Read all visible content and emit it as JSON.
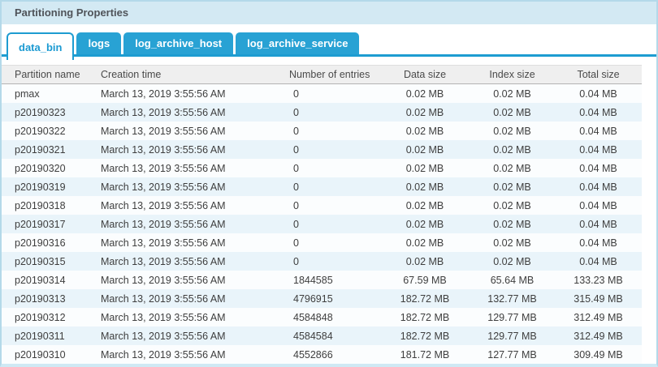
{
  "panel": {
    "title": "Partitioning Properties"
  },
  "tabs": [
    {
      "label": "data_bin",
      "active": true
    },
    {
      "label": "logs",
      "active": false
    },
    {
      "label": "log_archive_host",
      "active": false
    },
    {
      "label": "log_archive_service",
      "active": false
    }
  ],
  "table": {
    "columns": [
      "Partition name",
      "Creation time",
      "Number of entries",
      "Data size",
      "Index size",
      "Total size"
    ],
    "rows": [
      [
        "pmax",
        "March 13, 2019 3:55:56 AM",
        "0",
        "0.02 MB",
        "0.02 MB",
        "0.04 MB"
      ],
      [
        "p20190323",
        "March 13, 2019 3:55:56 AM",
        "0",
        "0.02 MB",
        "0.02 MB",
        "0.04 MB"
      ],
      [
        "p20190322",
        "March 13, 2019 3:55:56 AM",
        "0",
        "0.02 MB",
        "0.02 MB",
        "0.04 MB"
      ],
      [
        "p20190321",
        "March 13, 2019 3:55:56 AM",
        "0",
        "0.02 MB",
        "0.02 MB",
        "0.04 MB"
      ],
      [
        "p20190320",
        "March 13, 2019 3:55:56 AM",
        "0",
        "0.02 MB",
        "0.02 MB",
        "0.04 MB"
      ],
      [
        "p20190319",
        "March 13, 2019 3:55:56 AM",
        "0",
        "0.02 MB",
        "0.02 MB",
        "0.04 MB"
      ],
      [
        "p20190318",
        "March 13, 2019 3:55:56 AM",
        "0",
        "0.02 MB",
        "0.02 MB",
        "0.04 MB"
      ],
      [
        "p20190317",
        "March 13, 2019 3:55:56 AM",
        "0",
        "0.02 MB",
        "0.02 MB",
        "0.04 MB"
      ],
      [
        "p20190316",
        "March 13, 2019 3:55:56 AM",
        "0",
        "0.02 MB",
        "0.02 MB",
        "0.04 MB"
      ],
      [
        "p20190315",
        "March 13, 2019 3:55:56 AM",
        "0",
        "0.02 MB",
        "0.02 MB",
        "0.04 MB"
      ],
      [
        "p20190314",
        "March 13, 2019 3:55:56 AM",
        "1844585",
        "67.59 MB",
        "65.64 MB",
        "133.23 MB"
      ],
      [
        "p20190313",
        "March 13, 2019 3:55:56 AM",
        "4796915",
        "182.72 MB",
        "132.77 MB",
        "315.49 MB"
      ],
      [
        "p20190312",
        "March 13, 2019 3:55:56 AM",
        "4584848",
        "182.72 MB",
        "129.77 MB",
        "312.49 MB"
      ],
      [
        "p20190311",
        "March 13, 2019 3:55:56 AM",
        "4584584",
        "182.72 MB",
        "129.77 MB",
        "312.49 MB"
      ],
      [
        "p20190310",
        "March 13, 2019 3:55:56 AM",
        "4552866",
        "181.72 MB",
        "127.77 MB",
        "309.49 MB"
      ]
    ]
  },
  "colors": {
    "accent_blue": "#1d9cd1",
    "tab_background": "#28a2d4",
    "titlebar_background": "#d3e9f3",
    "panel_border": "#b4d9e9",
    "row_alternate": "#e9f4fa",
    "header_background": "#efefef"
  }
}
